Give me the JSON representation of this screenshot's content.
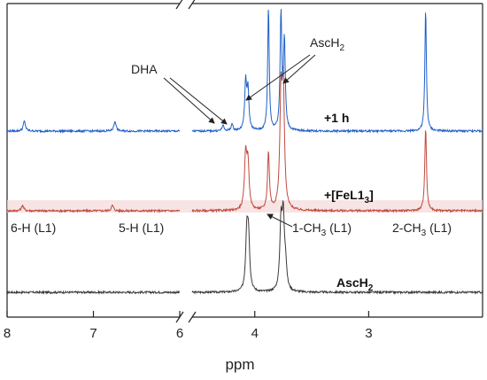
{
  "chart_data": {
    "type": "line",
    "xlabel": "ppm",
    "x_reversed": true,
    "broken_x_axis": true,
    "x_segments": [
      [
        8.0,
        6.0
      ],
      [
        4.55,
        2.0
      ]
    ],
    "xticks": [
      "8",
      "7",
      "6",
      "4",
      "3"
    ],
    "xtick_values": [
      8,
      7,
      6,
      4,
      3
    ],
    "series": [
      {
        "name": "AscH₂",
        "label_parts": [
          "AscH",
          "2"
        ],
        "color": "#3a3a3a",
        "peaks": [
          {
            "x": 4.07,
            "h": 0.5,
            "w": 0.012
          },
          {
            "x": 4.055,
            "h": 0.45,
            "w": 0.012
          },
          {
            "x": 3.77,
            "h": 0.58,
            "w": 0.012
          },
          {
            "x": 3.75,
            "h": 0.62,
            "w": 0.012
          },
          {
            "x": 3.73,
            "h": 0.2,
            "w": 0.012
          }
        ]
      },
      {
        "name": "+[FeL1₃]",
        "label_parts": [
          "+[FeL1",
          "3",
          "]"
        ],
        "color": "#c04a3e",
        "peaks": [
          {
            "x": 7.82,
            "h": 0.05,
            "w": 0.015
          },
          {
            "x": 6.78,
            "h": 0.05,
            "w": 0.015
          },
          {
            "x": 4.08,
            "h": 0.48,
            "w": 0.012
          },
          {
            "x": 4.06,
            "h": 0.4,
            "w": 0.012
          },
          {
            "x": 3.88,
            "h": 0.52,
            "w": 0.01
          },
          {
            "x": 3.77,
            "h": 0.95,
            "w": 0.012
          },
          {
            "x": 3.75,
            "h": 1.05,
            "w": 0.012
          },
          {
            "x": 2.5,
            "h": 0.75,
            "w": 0.009
          }
        ]
      },
      {
        "name": "+1 h",
        "label_parts": [
          "+1 h"
        ],
        "color": "#2060c8",
        "peaks": [
          {
            "x": 7.8,
            "h": 0.09,
            "w": 0.015
          },
          {
            "x": 6.75,
            "h": 0.09,
            "w": 0.015
          },
          {
            "x": 4.28,
            "h": 0.05,
            "w": 0.01
          },
          {
            "x": 4.2,
            "h": 0.06,
            "w": 0.01
          },
          {
            "x": 4.08,
            "h": 0.43,
            "w": 0.01
          },
          {
            "x": 4.06,
            "h": 0.35,
            "w": 0.01
          },
          {
            "x": 3.88,
            "h": 1.12,
            "w": 0.008
          },
          {
            "x": 3.77,
            "h": 1.05,
            "w": 0.009
          },
          {
            "x": 3.74,
            "h": 0.8,
            "w": 0.009
          },
          {
            "x": 2.5,
            "h": 1.1,
            "w": 0.008
          }
        ]
      }
    ],
    "annotations": {
      "dha": "DHA",
      "asch2_parts": [
        "AscH",
        "2"
      ],
      "h6": "6-H (L1)",
      "h5": "5-H (L1)",
      "ch3_1_parts": [
        "1-CH",
        "3",
        " (L1)"
      ],
      "ch3_2_parts": [
        "2-CH",
        "3",
        " (L1)"
      ]
    }
  }
}
